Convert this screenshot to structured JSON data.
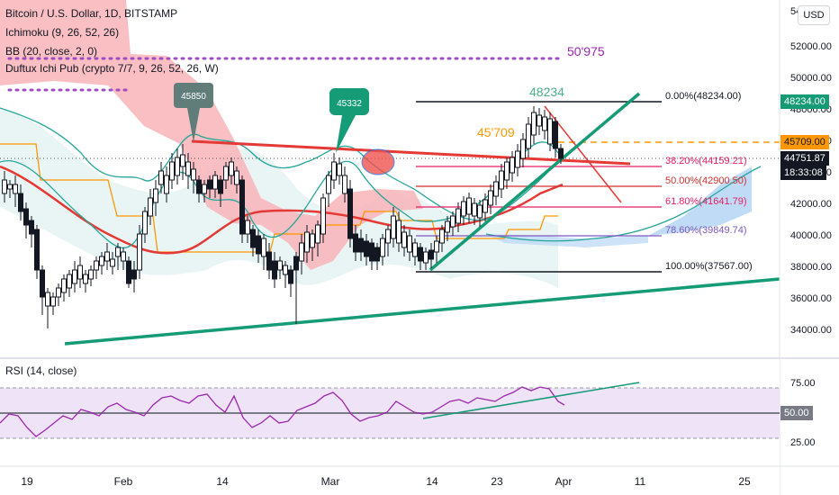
{
  "symbol": {
    "name": "Bitcoin / U.S. Dollar, 1D, BITSTAMP"
  },
  "indicators": [
    "Ichimoku (9, 26, 52, 26)",
    "BB (20, close, 2, 0)",
    "Duftux Ichi Pub (crypto 7/7, 9, 26, 52, 26, W)"
  ],
  "currency": "USD",
  "price_axis": {
    "top_partial": "54",
    "ticks": [
      "52000.00",
      "50000.00",
      "48000.00",
      "46000.00",
      "44000.00",
      "42000.00",
      "40000.00",
      "38000.00",
      "36000.00",
      "34000.00"
    ],
    "tags": {
      "fib0": "48234.00",
      "fib_level": "45709.00",
      "current": "44751.87",
      "countdown": "18:33:08"
    }
  },
  "time_axis": [
    "19",
    "Feb",
    "14",
    "Mar",
    "14",
    "23",
    "Apr",
    "11",
    "25"
  ],
  "annotations": {
    "purple_level": "50'975",
    "orange_level": "45'709",
    "high": "48234",
    "callout_left": "45850",
    "callout_mid": "45332"
  },
  "fibonacci": [
    {
      "label": "0.00%(48234.00)",
      "color": "#131722"
    },
    {
      "label": "38.20%(44159.21)",
      "color": "#e91e63"
    },
    {
      "label": "50.00%(42900.50)",
      "color": "#d32f2f"
    },
    {
      "label": "61.80%(41641.79)",
      "color": "#e91e63"
    },
    {
      "label": "78.60%(39849.74)",
      "color": "#7e57c2"
    },
    {
      "label": "100.00%(37567.00)",
      "color": "#131722"
    }
  ],
  "rsi": {
    "title": "RSI (14, close)",
    "ticks": [
      "75.00",
      "25.00"
    ],
    "current": "50.00"
  },
  "colors": {
    "up": "#ffffff",
    "down": "#131722",
    "cloud_red": "#f8b4b8",
    "cloud_blue": "#b9d7f5",
    "trend_green": "#159b76",
    "fib_orange": "#ff9800",
    "rsi_purple": "#9c27b0"
  }
}
